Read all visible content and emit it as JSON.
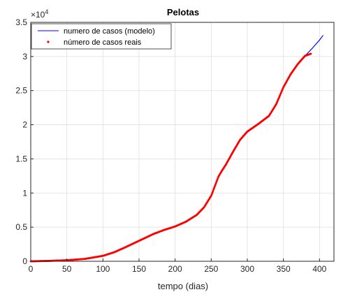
{
  "chart_data": {
    "type": "line",
    "title": "Pelotas",
    "xlabel": "tempo (dias)",
    "ylabel": "",
    "y_exponent_label": "×10",
    "y_exponent_power": "4",
    "xlim": [
      0,
      420
    ],
    "ylim": [
      0,
      35000
    ],
    "xticks": [
      0,
      50,
      100,
      150,
      200,
      250,
      300,
      350,
      400
    ],
    "xtick_labels": [
      "0",
      "50",
      "100",
      "150",
      "200",
      "250",
      "300",
      "350",
      "400"
    ],
    "yticks": [
      0,
      5000,
      10000,
      15000,
      20000,
      25000,
      30000,
      35000
    ],
    "ytick_labels": [
      "0",
      "0.5",
      "1",
      "1.5",
      "2",
      "2.5",
      "3",
      "3.5"
    ],
    "grid": true,
    "legend_position": "top-left",
    "series": [
      {
        "name": "numero de casos (modelo)",
        "style": "line",
        "color": "#0000ff",
        "x": [
          0,
          25,
          50,
          75,
          100,
          115,
          130,
          150,
          170,
          185,
          200,
          215,
          230,
          240,
          250,
          255,
          260,
          265,
          270,
          280,
          290,
          300,
          315,
          330,
          340,
          350,
          360,
          370,
          380,
          390,
          400,
          405
        ],
        "values": [
          0,
          60,
          150,
          350,
          800,
          1300,
          2000,
          3000,
          4000,
          4600,
          5100,
          5800,
          6800,
          7900,
          9600,
          11000,
          12400,
          13300,
          14100,
          16000,
          17800,
          19000,
          20100,
          21300,
          23000,
          25500,
          27400,
          28900,
          30100,
          31200,
          32400,
          33100
        ]
      },
      {
        "name": "número de casos reais",
        "style": "points",
        "color": "#ff0000",
        "x": [
          0,
          25,
          50,
          75,
          100,
          115,
          130,
          150,
          170,
          185,
          200,
          215,
          230,
          240,
          250,
          255,
          260,
          265,
          270,
          280,
          290,
          300,
          315,
          330,
          340,
          350,
          360,
          370,
          380,
          388
        ],
        "values": [
          0,
          60,
          150,
          350,
          800,
          1300,
          2000,
          3000,
          4000,
          4600,
          5100,
          5800,
          6800,
          7900,
          9600,
          11000,
          12400,
          13300,
          14100,
          16000,
          17800,
          19000,
          20100,
          21300,
          23000,
          25500,
          27400,
          28900,
          30100,
          30400
        ]
      }
    ]
  }
}
